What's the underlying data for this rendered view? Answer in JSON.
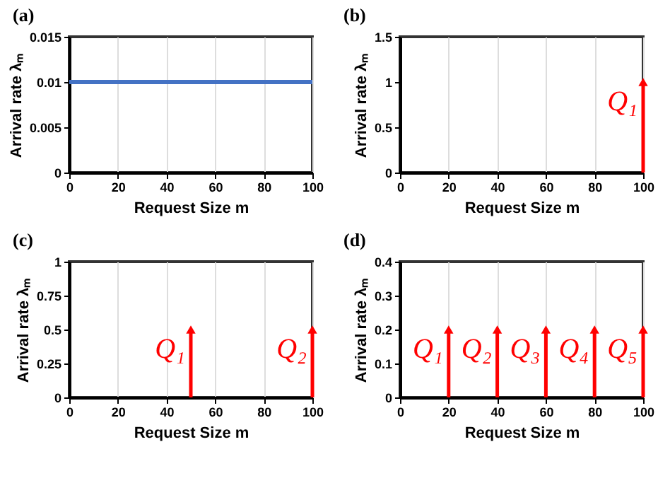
{
  "chart_data": [
    {
      "type": "line",
      "title": "(a)",
      "xlabel": "Request Size m",
      "ylabel": "Arrival rate λₘ",
      "xlim": [
        0,
        100
      ],
      "xticks": [
        0,
        20,
        40,
        60,
        80,
        100
      ],
      "ylim": [
        0,
        0.015
      ],
      "yticks": [
        0,
        0.005,
        0.01,
        0.015
      ],
      "grid": "x",
      "marker": "none",
      "series": [
        {
          "x": [
            0,
            100
          ],
          "values": [
            0.01,
            0.01
          ],
          "color": "#4472c4"
        }
      ]
    },
    {
      "type": "lollipop",
      "title": "(b)",
      "xlabel": "Request Size m",
      "ylabel": "Arrival rate λₘ",
      "xlim": [
        0,
        100
      ],
      "xticks": [
        0,
        20,
        40,
        60,
        80,
        100
      ],
      "ylim": [
        0,
        1.5
      ],
      "yticks": [
        0,
        0.5,
        1,
        1.5
      ],
      "grid": "x",
      "marker": "triangle",
      "series": [
        {
          "x": [
            100
          ],
          "values": [
            1
          ],
          "color": "#ff0000"
        }
      ],
      "annotations": [
        {
          "text": "Q₁",
          "x": 100,
          "y": 1
        }
      ]
    },
    {
      "type": "lollipop",
      "title": "(c)",
      "xlabel": "Request Size m",
      "ylabel": "Arrival rate λₘ",
      "xlim": [
        0,
        100
      ],
      "xticks": [
        0,
        20,
        40,
        60,
        80,
        100
      ],
      "ylim": [
        0,
        1
      ],
      "yticks": [
        0,
        0.25,
        0.5,
        0.75,
        1
      ],
      "grid": "x",
      "marker": "triangle",
      "series": [
        {
          "x": [
            50,
            100
          ],
          "values": [
            0.5,
            0.5
          ],
          "color": "#ff0000"
        }
      ],
      "annotations": [
        {
          "text": "Q₁",
          "x": 50,
          "y": 0.5
        },
        {
          "text": "Q₂",
          "x": 100,
          "y": 0.5
        }
      ]
    },
    {
      "type": "lollipop",
      "title": "(d)",
      "xlabel": "Request Size m",
      "ylabel": "Arrival rate λₘ",
      "xlim": [
        0,
        100
      ],
      "xticks": [
        0,
        20,
        40,
        60,
        80,
        100
      ],
      "ylim": [
        0,
        0.4
      ],
      "yticks": [
        0,
        0.1,
        0.2,
        0.3,
        0.4
      ],
      "grid": "x",
      "marker": "triangle",
      "series": [
        {
          "x": [
            20,
            40,
            60,
            80,
            100
          ],
          "values": [
            0.2,
            0.2,
            0.2,
            0.2,
            0.2
          ],
          "color": "#ff0000"
        }
      ],
      "annotations": [
        {
          "text": "Q₁",
          "x": 20,
          "y": 0.2
        },
        {
          "text": "Q₂",
          "x": 40,
          "y": 0.2
        },
        {
          "text": "Q₃",
          "x": 60,
          "y": 0.2
        },
        {
          "text": "Q₄",
          "x": 80,
          "y": 0.2
        },
        {
          "text": "Q₅",
          "x": 100,
          "y": 0.2
        }
      ]
    }
  ]
}
